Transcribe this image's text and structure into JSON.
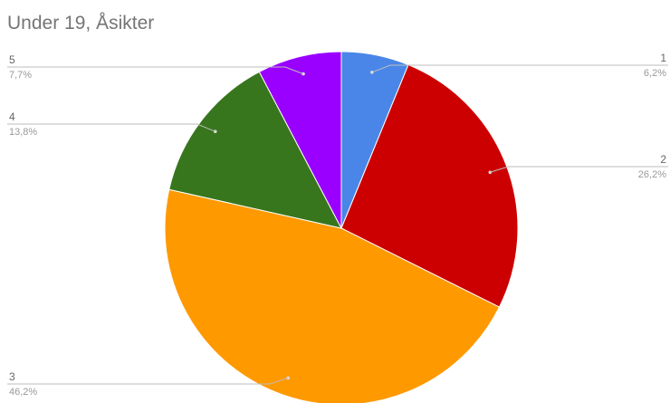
{
  "chart_data": {
    "type": "pie",
    "title": "Under 19, Åsikter",
    "slices": [
      {
        "label": "1",
        "value": 6.2,
        "display": "6,2%",
        "color": "#4a86e8"
      },
      {
        "label": "2",
        "value": 26.2,
        "display": "26,2%",
        "color": "#cc0000"
      },
      {
        "label": "3",
        "value": 46.2,
        "display": "46,2%",
        "color": "#ff9900"
      },
      {
        "label": "4",
        "value": 13.8,
        "display": "13,8%",
        "color": "#38761d"
      },
      {
        "label": "5",
        "value": 7.7,
        "display": "7,7%",
        "color": "#9900ff"
      }
    ],
    "legend": "none",
    "label_placement": "outside with leader lines"
  }
}
